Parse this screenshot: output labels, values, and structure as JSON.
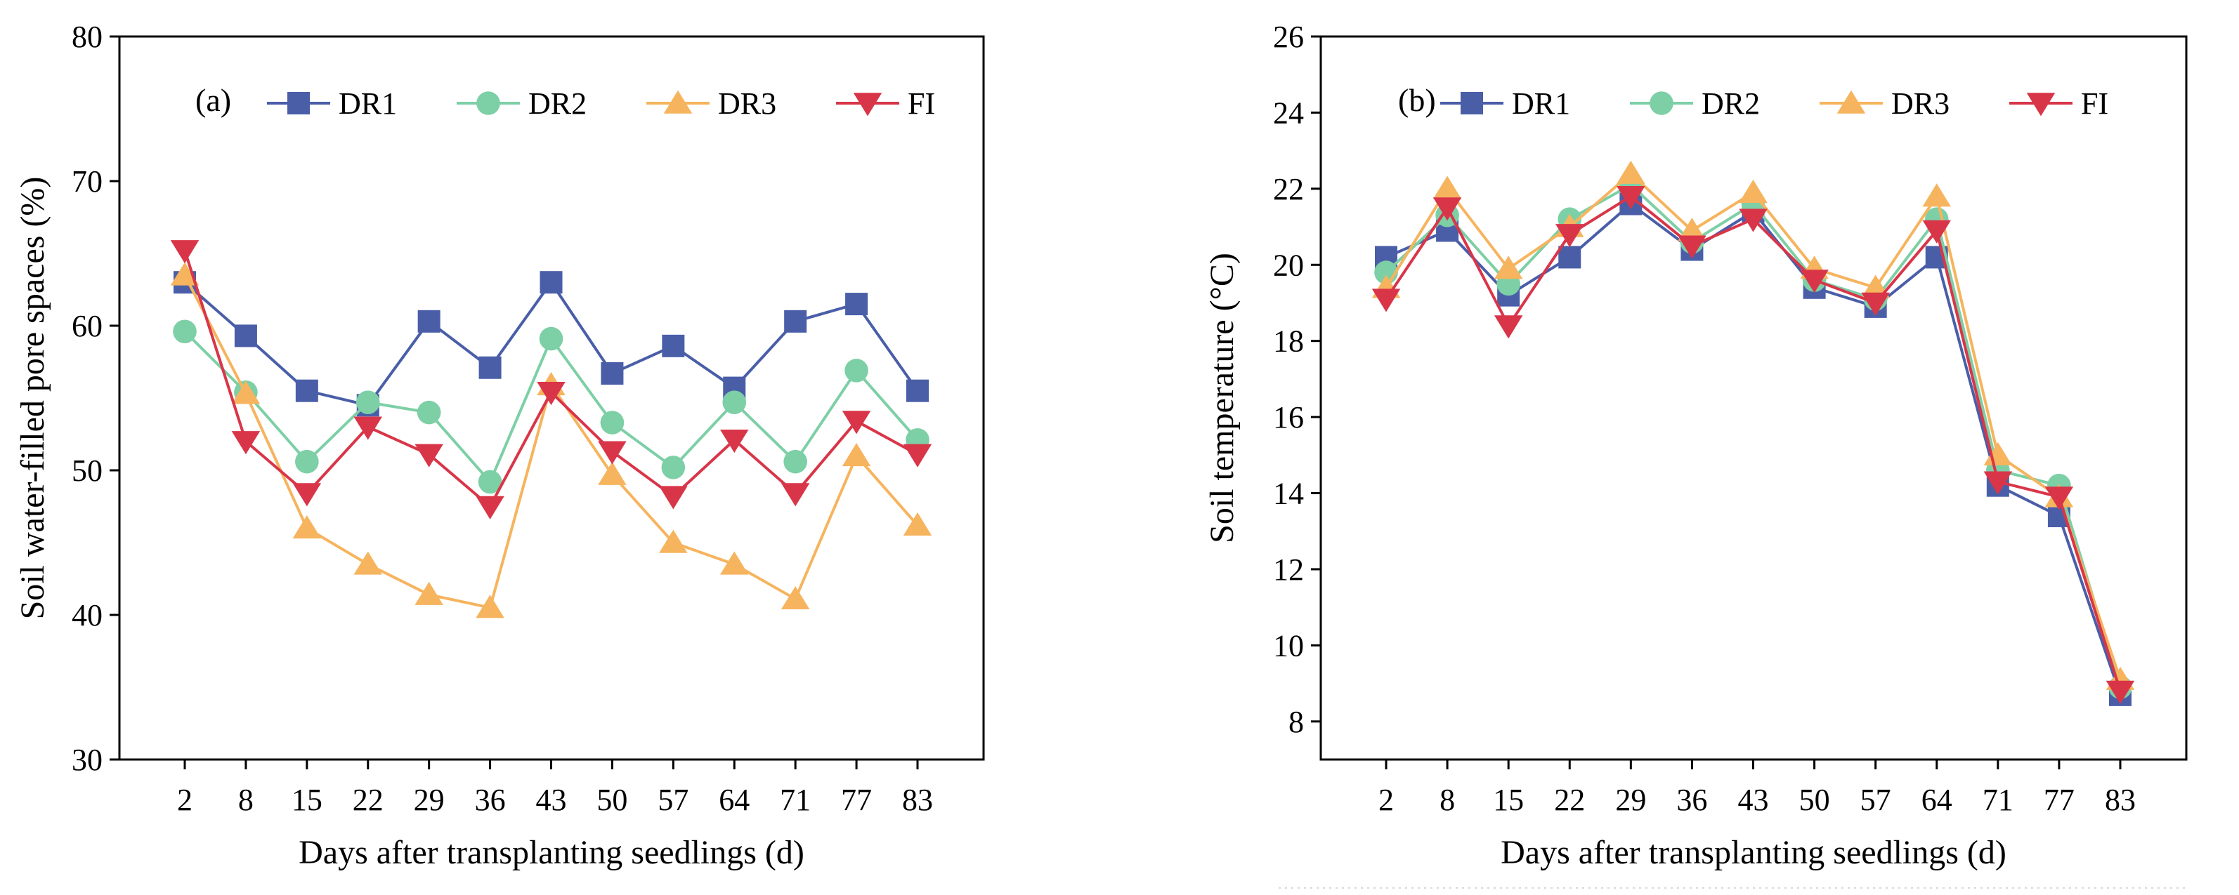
{
  "chart_data": [
    {
      "type": "line",
      "panel_label": "(a)",
      "categories": [
        "2",
        "8",
        "15",
        "22",
        "29",
        "36",
        "43",
        "50",
        "57",
        "64",
        "71",
        "77",
        "83"
      ],
      "xlabel": "Days after transplanting seedlings (d)",
      "ylabel": "Soil water-filled pore spaces (%)",
      "ylim": [
        30,
        80
      ],
      "yticks": [
        "30",
        "40",
        "50",
        "60",
        "70",
        "80"
      ],
      "legend_position": "top-right",
      "series": [
        {
          "name": "DR1",
          "color": "#4a5ea8",
          "marker": "square",
          "values": [
            63.0,
            59.3,
            55.5,
            54.5,
            60.3,
            57.1,
            63.0,
            56.7,
            58.6,
            55.7,
            60.3,
            61.5,
            55.5
          ]
        },
        {
          "name": "DR2",
          "color": "#7dcfa6",
          "marker": "circle",
          "values": [
            59.6,
            55.4,
            50.6,
            54.7,
            54.0,
            49.2,
            59.1,
            53.3,
            50.2,
            54.7,
            50.6,
            56.9,
            52.1
          ]
        },
        {
          "name": "DR3",
          "color": "#f6b45e",
          "marker": "triangle-up",
          "values": [
            63.5,
            55.3,
            46.0,
            43.5,
            41.4,
            40.5,
            55.9,
            49.7,
            45.0,
            43.5,
            41.1,
            51.0,
            46.2
          ]
        },
        {
          "name": "FI",
          "color": "#d93548",
          "marker": "triangle-down",
          "values": [
            65.2,
            52.0,
            48.4,
            53.0,
            51.1,
            47.5,
            55.4,
            51.3,
            48.2,
            52.1,
            48.4,
            53.4,
            51.1
          ]
        }
      ]
    },
    {
      "type": "line",
      "panel_label": "(b)",
      "categories": [
        "2",
        "8",
        "15",
        "22",
        "29",
        "36",
        "43",
        "50",
        "57",
        "64",
        "71",
        "77",
        "83"
      ],
      "xlabel": "Days after transplanting seedlings (d)",
      "ylabel": "Soil temperature (°C)",
      "ylim": [
        7,
        26
      ],
      "yticks": [
        "8",
        "10",
        "12",
        "14",
        "16",
        "18",
        "20",
        "22",
        "24",
        "26"
      ],
      "legend_position": "top-right",
      "series": [
        {
          "name": "DR1",
          "color": "#4a5ea8",
          "marker": "square",
          "values": [
            20.2,
            20.9,
            19.2,
            20.2,
            21.6,
            20.4,
            21.4,
            19.4,
            18.9,
            20.2,
            14.2,
            13.4,
            8.7
          ]
        },
        {
          "name": "DR2",
          "color": "#7dcfa6",
          "marker": "circle",
          "values": [
            19.8,
            21.3,
            19.5,
            21.2,
            22.1,
            20.6,
            21.6,
            19.6,
            19.1,
            21.2,
            14.6,
            14.2,
            8.9
          ]
        },
        {
          "name": "DR3",
          "color": "#f6b45e",
          "marker": "triangle-up",
          "values": [
            19.4,
            22.0,
            19.9,
            21.0,
            22.4,
            20.9,
            21.9,
            19.9,
            19.4,
            21.8,
            15.0,
            13.9,
            9.1
          ]
        },
        {
          "name": "FI",
          "color": "#d93548",
          "marker": "triangle-down",
          "values": [
            19.1,
            21.5,
            18.4,
            20.8,
            21.8,
            20.5,
            21.2,
            19.6,
            19.0,
            20.9,
            14.3,
            13.9,
            8.8
          ]
        }
      ]
    }
  ]
}
